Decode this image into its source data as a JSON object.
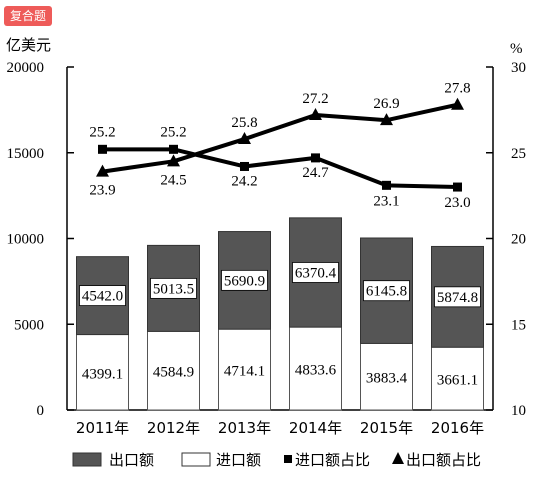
{
  "tag": {
    "label": "复合题"
  },
  "chart_data": {
    "type": "bar",
    "left_unit": "亿美元",
    "right_unit": "%",
    "categories": [
      "2011年",
      "2012年",
      "2013年",
      "2014年",
      "2015年",
      "2016年"
    ],
    "ylim_left": [
      0,
      20000
    ],
    "ylim_right": [
      10,
      30
    ],
    "left_ticks": [
      "0",
      "5000",
      "10000",
      "15000",
      "20000"
    ],
    "right_ticks": [
      "10",
      "15",
      "20",
      "25",
      "30"
    ],
    "bar_series": [
      {
        "name": "进口额",
        "values": [
          4399.1,
          4584.9,
          4714.1,
          4833.6,
          3883.4,
          3661.1
        ],
        "labels": [
          "4399.1",
          "4584.9",
          "4714.1",
          "4833.6",
          "3883.4",
          "3661.1"
        ],
        "color": "#ffffff"
      },
      {
        "name": "出口额",
        "values": [
          4542.0,
          5013.5,
          5690.9,
          6370.4,
          6145.8,
          5874.8
        ],
        "labels": [
          "4542.0",
          "5013.5",
          "5690.9",
          "6370.4",
          "6145.8",
          "5874.8"
        ],
        "color": "#555555"
      }
    ],
    "line_series": [
      {
        "name": "进口额占比",
        "marker": "square",
        "values": [
          25.2,
          25.2,
          24.2,
          24.7,
          23.1,
          23.0
        ],
        "labels": [
          "25.2",
          "25.2",
          "24.2",
          "24.7",
          "23.1",
          "23.0"
        ]
      },
      {
        "name": "出口额占比",
        "marker": "triangle",
        "values": [
          23.9,
          24.5,
          25.8,
          27.2,
          26.9,
          27.8
        ],
        "labels": [
          "23.9",
          "24.5",
          "25.8",
          "27.2",
          "26.9",
          "27.8"
        ]
      }
    ],
    "legend": [
      {
        "name": "出口额",
        "symbol": "dark-box"
      },
      {
        "name": "进口额",
        "symbol": "white-box"
      },
      {
        "name": "进口额占比",
        "symbol": "square"
      },
      {
        "name": "出口额占比",
        "symbol": "triangle"
      }
    ],
    "legend_position": "bottom"
  }
}
